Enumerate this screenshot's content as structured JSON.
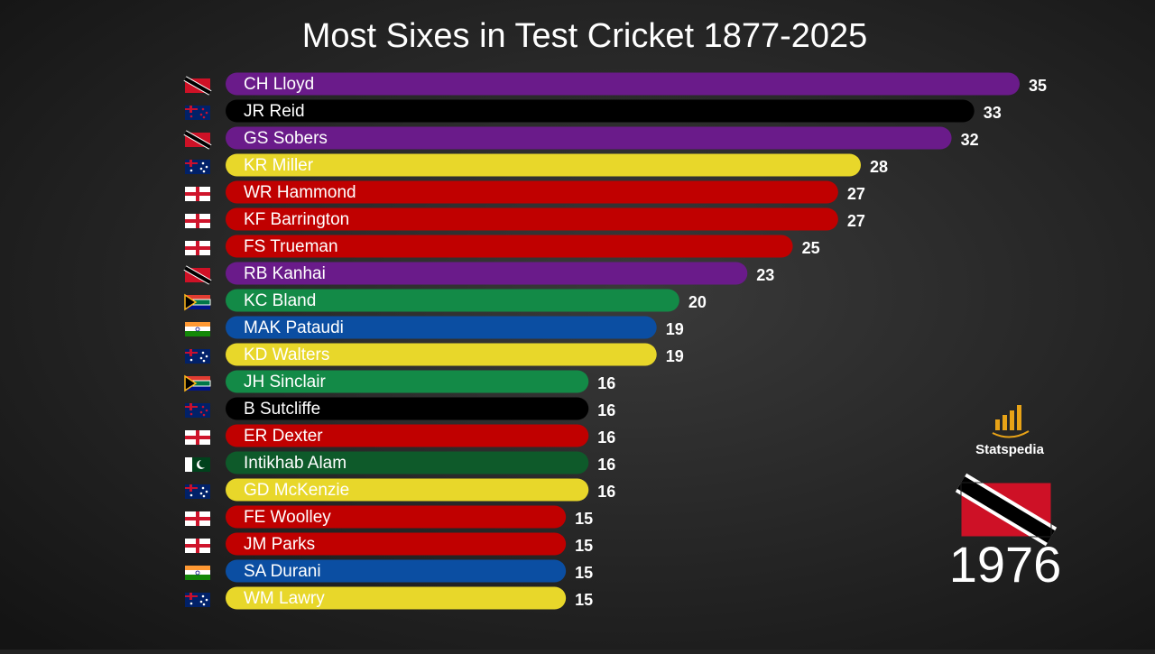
{
  "chart_data": {
    "type": "bar",
    "orientation": "horizontal",
    "title": "Most Sixes in Test Cricket 1877-2025",
    "period": "1976",
    "brand": "Statspedia",
    "categories": [
      "CH Lloyd",
      "JR Reid",
      "GS Sobers",
      "KR Miller",
      "WR Hammond",
      "KF Barrington",
      "FS Trueman",
      "RB Kanhai",
      "KC Bland",
      "MAK Pataudi",
      "KD Walters",
      "JH Sinclair",
      "B Sutcliffe",
      "ER Dexter",
      "Intikhab Alam",
      "GD McKenzie",
      "FE Woolley",
      "JM Parks",
      "SA Durani",
      "WM Lawry"
    ],
    "values": [
      35,
      33,
      32,
      28,
      27,
      27,
      25,
      23,
      20,
      19,
      19,
      16,
      16,
      16,
      16,
      16,
      15,
      15,
      15,
      15
    ],
    "colors": [
      "#6a1b8a",
      "#000000",
      "#6a1b8a",
      "#e8d72a",
      "#c00000",
      "#c00000",
      "#c00000",
      "#6a1b8a",
      "#138a47",
      "#0b4ea2",
      "#e8d72a",
      "#138a47",
      "#000000",
      "#c00000",
      "#0e5a2a",
      "#e8d72a",
      "#c00000",
      "#c00000",
      "#0b4ea2",
      "#e8d72a"
    ]
  }
}
